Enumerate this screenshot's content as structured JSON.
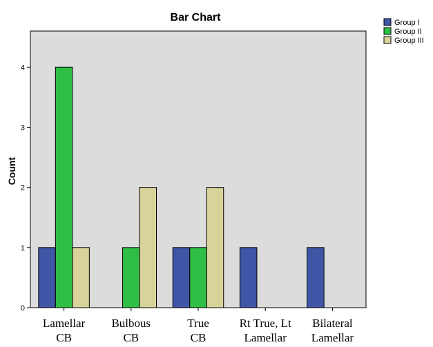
{
  "chart_data": {
    "type": "bar",
    "title": "Bar Chart",
    "xlabel": "",
    "ylabel": "Count",
    "ylim": [
      0,
      4.6
    ],
    "yticks": [
      0,
      1,
      2,
      3,
      4
    ],
    "grid": false,
    "legend_position": "top-right, outside plot",
    "categories": [
      [
        "Lamellar",
        "CB"
      ],
      [
        "Bulbous",
        "CB"
      ],
      [
        "True",
        "CB"
      ],
      [
        "Rt True, Lt",
        "Lamellar"
      ],
      [
        "Bilateral",
        "Lamellar"
      ]
    ],
    "series": [
      {
        "name": "Group I",
        "color": "#3F55A6",
        "values": [
          1,
          0,
          1,
          1,
          1
        ]
      },
      {
        "name": "Group II",
        "color": "#2FBF47",
        "values": [
          4,
          1,
          1,
          0,
          0
        ]
      },
      {
        "name": "Group III",
        "color": "#D8D39A",
        "values": [
          1,
          2,
          2,
          0,
          0
        ]
      }
    ],
    "plot_background": "#DCDCDC"
  }
}
